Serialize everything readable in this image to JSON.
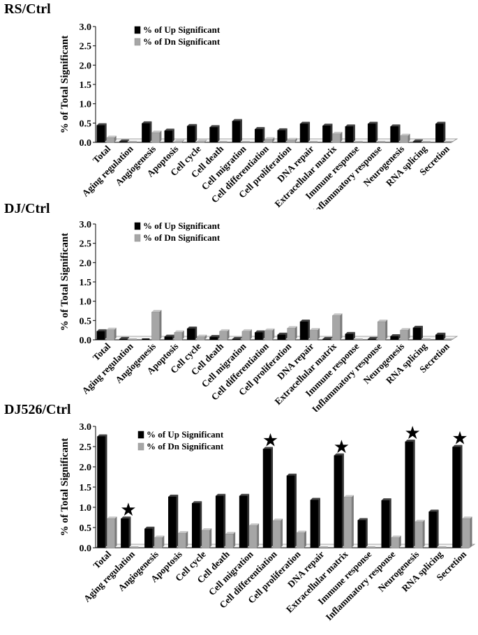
{
  "chart_data": [
    {
      "type": "bar",
      "title": "RS/Ctrl",
      "xlabel": "",
      "ylabel": "% of  Total Significant",
      "ylim": [
        0,
        3.0
      ],
      "yticks": [
        "0.0",
        "0.5",
        "1.0",
        "1.5",
        "2.0",
        "2.5",
        "3.0"
      ],
      "categories": [
        "Total",
        "Aging regulation",
        "Angiogenesis",
        "Apoptosis",
        "Cell cycle",
        "Cell death",
        "Cell migration",
        "Cell differentiation",
        "Cell proliferation",
        "DNA repair",
        "Extracellular matrix",
        "Immune response",
        "Inflammatory response",
        "Neurogenesis",
        "RNA splicing",
        "Secretion"
      ],
      "series": [
        {
          "name": "% of Up Significant",
          "color": "#000000",
          "values": [
            0.44,
            0.02,
            0.49,
            0.3,
            0.42,
            0.39,
            0.55,
            0.34,
            0.31,
            0.48,
            0.43,
            0.41,
            0.48,
            0.41,
            0.02,
            0.48
          ]
        },
        {
          "name": "% of Dn Significant",
          "color": "#a6a6a6",
          "values": [
            0.12,
            0.0,
            0.25,
            0.02,
            0.02,
            0.0,
            0.0,
            0.08,
            0.06,
            0.0,
            0.22,
            0.0,
            0.0,
            0.17,
            0.0,
            0.0
          ]
        }
      ],
      "markers": []
    },
    {
      "type": "bar",
      "title": "DJ/Ctrl",
      "xlabel": "",
      "ylabel": "% of  Total Significant",
      "ylim": [
        0,
        3.0
      ],
      "yticks": [
        "0.0",
        "0.5",
        "1.0",
        "1.5",
        "2.0",
        "2.5",
        "3.0"
      ],
      "categories": [
        "Total",
        "Aging regulation",
        "Angiogenesis",
        "Apoptosis",
        "Cell cycle",
        "Cell death",
        "Cell migration",
        "Cell differentiation",
        "Cell proliferation",
        "DNA repair",
        "Extracellular matrix",
        "Immune response",
        "Inflammatory response",
        "Neurogenesis",
        "RNA splicing",
        "Secretion"
      ],
      "series": [
        {
          "name": "% of Up Significant",
          "color": "#000000",
          "values": [
            0.22,
            0.02,
            0.0,
            0.08,
            0.29,
            0.07,
            0.02,
            0.19,
            0.13,
            0.47,
            0.02,
            0.15,
            0.02,
            0.09,
            0.31,
            0.13
          ]
        },
        {
          "name": "% of Dn Significant",
          "color": "#a6a6a6",
          "values": [
            0.26,
            0.0,
            0.72,
            0.19,
            0.08,
            0.22,
            0.22,
            0.24,
            0.3,
            0.25,
            0.63,
            0.0,
            0.47,
            0.25,
            0.0,
            0.0
          ]
        }
      ],
      "markers": []
    },
    {
      "type": "bar",
      "title": "DJ526/Ctrl",
      "xlabel": "",
      "ylabel": "% of  Total Significant",
      "ylim": [
        0,
        3.0
      ],
      "yticks": [
        "0.0",
        "0.5",
        "1.0",
        "1.5",
        "2.0",
        "2.5",
        "3.0"
      ],
      "categories": [
        "Total",
        "Aging regulation",
        "Angiogenesis",
        "Apoptosis",
        "Cell cycle",
        "Cell death",
        "Cell migration",
        "Cell differentiation",
        "Cell proliferation",
        "DNA repair",
        "Extracellular matrix",
        "Immune response",
        "Inflammatory response",
        "Neurogenesis",
        "RNA splicing",
        "Secretion"
      ],
      "series": [
        {
          "name": "% of Up Significant",
          "color": "#000000",
          "values": [
            2.75,
            0.72,
            0.47,
            1.26,
            1.1,
            1.28,
            1.28,
            2.44,
            1.78,
            1.18,
            2.28,
            0.68,
            1.17,
            2.62,
            0.89,
            2.49
          ]
        },
        {
          "name": "% of Dn Significant",
          "color": "#a6a6a6",
          "values": [
            0.72,
            0.0,
            0.25,
            0.36,
            0.43,
            0.34,
            0.55,
            0.67,
            0.37,
            0.0,
            1.25,
            0.0,
            0.25,
            0.64,
            0.0,
            0.72
          ]
        }
      ],
      "markers": [
        {
          "category": "Aging regulation",
          "symbol": "★"
        },
        {
          "category": "Cell differentiation",
          "symbol": "★"
        },
        {
          "category": "Extracellular matrix",
          "symbol": "★"
        },
        {
          "category": "Neurogenesis",
          "symbol": "★"
        },
        {
          "category": "Secretion",
          "symbol": "★"
        }
      ]
    }
  ]
}
